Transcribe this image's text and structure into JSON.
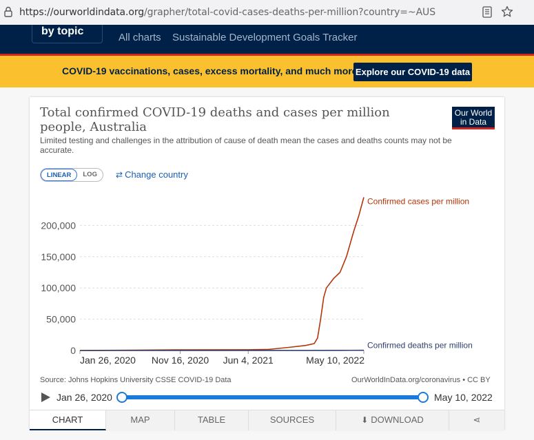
{
  "browser": {
    "url_host": "https://ourworldindata.org",
    "url_path": "/grapher/total-covid-cases-deaths-per-million?country=~AUS"
  },
  "nav": {
    "by_topic": "by topic",
    "links": [
      "All charts",
      "Sustainable Development Goals Tracker"
    ]
  },
  "banner": {
    "text": "COVID-19 vaccinations, cases, excess mortality, and much more",
    "button": "Explore our COVID-19 data"
  },
  "chart_header": {
    "title": "Total confirmed COVID-19 deaths and cases per million people, Australia",
    "subtitle": "Limited testing and challenges in the attribution of cause of death mean the cases and deaths counts may not be accurate.",
    "logo": "Our World in Data"
  },
  "controls": {
    "linear": "LINEAR",
    "log": "LOG",
    "change_country": "Change country"
  },
  "chart_data": {
    "type": "line",
    "x_ticks": [
      "Jan 26, 2020",
      "Nov 16, 2020",
      "Jun 4, 2021",
      "May 10, 2022"
    ],
    "y_ticks": [
      "0",
      "50,000",
      "100,000",
      "150,000",
      "200,000"
    ],
    "ylim": [
      0,
      250000
    ],
    "xlim": [
      "2020-01-26",
      "2022-05-10"
    ],
    "grid": true,
    "series": [
      {
        "name": "Confirmed cases per million",
        "color": "#b13507",
        "points": [
          [
            "2020-01-26",
            0
          ],
          [
            "2020-07-01",
            400
          ],
          [
            "2020-11-16",
            1100
          ],
          [
            "2021-06-04",
            1200
          ],
          [
            "2021-08-01",
            1600
          ],
          [
            "2021-10-01",
            5000
          ],
          [
            "2021-11-20",
            8000
          ],
          [
            "2021-12-15",
            11000
          ],
          [
            "2021-12-25",
            20000
          ],
          [
            "2022-01-03",
            50000
          ],
          [
            "2022-01-12",
            85000
          ],
          [
            "2022-01-20",
            100000
          ],
          [
            "2022-02-10",
            115000
          ],
          [
            "2022-03-01",
            125000
          ],
          [
            "2022-03-20",
            150000
          ],
          [
            "2022-04-10",
            190000
          ],
          [
            "2022-04-25",
            215000
          ],
          [
            "2022-05-10",
            245000
          ]
        ]
      },
      {
        "name": "Confirmed deaths per million",
        "color": "#2d3e6d",
        "points": [
          [
            "2020-01-26",
            0
          ],
          [
            "2020-11-16",
            35
          ],
          [
            "2021-06-04",
            36
          ],
          [
            "2021-12-01",
            80
          ],
          [
            "2022-03-01",
            200
          ],
          [
            "2022-05-10",
            280
          ]
        ]
      }
    ]
  },
  "footer": {
    "source": "Source: Johns Hopkins University CSSE COVID-19 Data",
    "license": "OurWorldInData.org/coronavirus • CC BY"
  },
  "timeline": {
    "start": "Jan 26, 2020",
    "end": "May 10, 2022"
  },
  "tabs": [
    "CHART",
    "MAP",
    "TABLE",
    "SOURCES",
    "DOWNLOAD"
  ]
}
